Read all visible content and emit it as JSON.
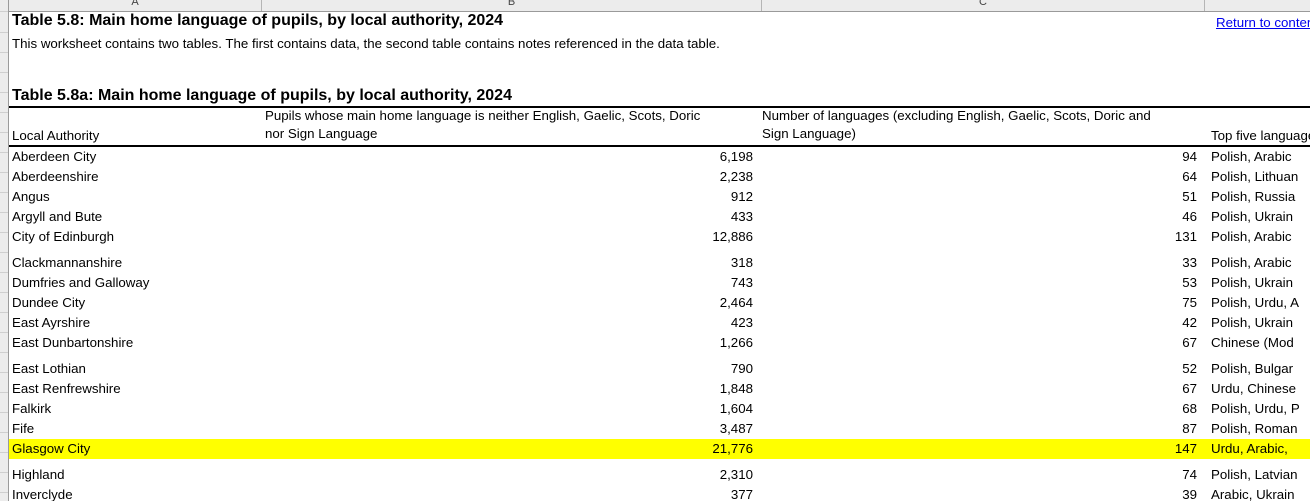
{
  "sheet": {
    "column_letters": [
      "A",
      "B",
      "C"
    ],
    "title": "Table 5.8: Main home language of pupils, by local authority, 2024",
    "subtitle": "This worksheet contains two tables. The first contains data, the second table contains notes referenced in the data table.",
    "return_link_label": "Return to contents",
    "table_title": "Table 5.8a: Main home language of pupils, by local authority, 2024"
  },
  "colors": {
    "highlight": "#ffff00",
    "link": "#0000ee",
    "chrome_background": "#ececec"
  },
  "table": {
    "headers": {
      "local_authority": "Local Authority",
      "pupils": "Pupils whose main home language is neither English, Gaelic, Scots, Doric nor Sign Language",
      "num_languages": "Number of languages (excluding English, Gaelic, Scots, Doric and Sign Language)",
      "top_five": "Top five languages"
    },
    "rows": [
      {
        "name": "Aberdeen City",
        "pupils": "6,198",
        "languages": "94",
        "top5": "Polish, Arabic",
        "group_start": false,
        "highlight": false
      },
      {
        "name": "Aberdeenshire",
        "pupils": "2,238",
        "languages": "64",
        "top5": "Polish, Lithuan",
        "group_start": false,
        "highlight": false
      },
      {
        "name": "Angus",
        "pupils": "912",
        "languages": "51",
        "top5": "Polish, Russia",
        "group_start": false,
        "highlight": false
      },
      {
        "name": "Argyll and Bute",
        "pupils": "433",
        "languages": "46",
        "top5": "Polish, Ukrain",
        "group_start": false,
        "highlight": false
      },
      {
        "name": "City of Edinburgh",
        "pupils": "12,886",
        "languages": "131",
        "top5": "Polish, Arabic",
        "group_start": false,
        "highlight": false
      },
      {
        "name": "Clackmannanshire",
        "pupils": "318",
        "languages": "33",
        "top5": "Polish, Arabic",
        "group_start": true,
        "highlight": false
      },
      {
        "name": "Dumfries and Galloway",
        "pupils": "743",
        "languages": "53",
        "top5": "Polish, Ukrain",
        "group_start": false,
        "highlight": false
      },
      {
        "name": "Dundee City",
        "pupils": "2,464",
        "languages": "75",
        "top5": "Polish, Urdu, A",
        "group_start": false,
        "highlight": false
      },
      {
        "name": "East Ayrshire",
        "pupils": "423",
        "languages": "42",
        "top5": "Polish, Ukrain",
        "group_start": false,
        "highlight": false
      },
      {
        "name": "East Dunbartonshire",
        "pupils": "1,266",
        "languages": "67",
        "top5": "Chinese (Mod",
        "group_start": false,
        "highlight": false
      },
      {
        "name": "East Lothian",
        "pupils": "790",
        "languages": "52",
        "top5": "Polish, Bulgar",
        "group_start": true,
        "highlight": false
      },
      {
        "name": "East Renfrewshire",
        "pupils": "1,848",
        "languages": "67",
        "top5": "Urdu, Chinese",
        "group_start": false,
        "highlight": false
      },
      {
        "name": "Falkirk",
        "pupils": "1,604",
        "languages": "68",
        "top5": "Polish, Urdu, P",
        "group_start": false,
        "highlight": false
      },
      {
        "name": "Fife",
        "pupils": "3,487",
        "languages": "87",
        "top5": "Polish, Roman",
        "group_start": false,
        "highlight": false
      },
      {
        "name": "Glasgow City",
        "pupils": "21,776",
        "languages": "147",
        "top5": "Urdu, Arabic, ",
        "group_start": false,
        "highlight": true
      },
      {
        "name": "Highland",
        "pupils": "2,310",
        "languages": "74",
        "top5": "Polish, Latvian",
        "group_start": true,
        "highlight": false
      },
      {
        "name": "Inverclyde",
        "pupils": "377",
        "languages": "39",
        "top5": "Arabic, Ukrain",
        "group_start": false,
        "highlight": false
      }
    ]
  }
}
